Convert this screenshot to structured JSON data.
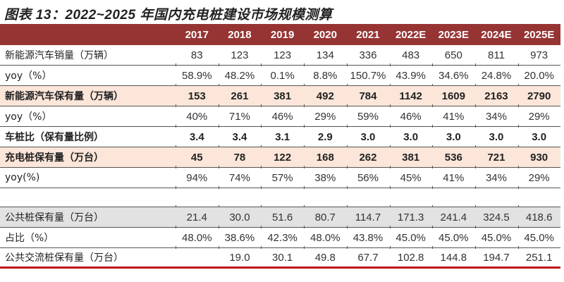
{
  "title": "图表 13：2022~2025 年国内充电桩建设市场规模测算",
  "colors": {
    "header_bg": "#963434",
    "highlight_peach": "#fbe6d9",
    "highlight_gray": "#e2e2e2",
    "bottom_rule": "#c0141b"
  },
  "table": {
    "columns": [
      "2017",
      "2018",
      "2019",
      "2020",
      "2021",
      "2022E",
      "2023E",
      "2024E",
      "2025E"
    ],
    "rows": [
      {
        "label": "新能源汽车销量（万辆）",
        "values": [
          "83",
          "123",
          "123",
          "134",
          "336",
          "483",
          "650",
          "811",
          "973"
        ]
      },
      {
        "label": "yoy（%）",
        "values": [
          "58.9%",
          "48.2%",
          "0.1%",
          "8.8%",
          "150.7%",
          "43.9%",
          "34.6%",
          "24.8%",
          "20.0%"
        ]
      },
      {
        "label": "新能源汽车保有量（万辆）",
        "values": [
          "153",
          "261",
          "381",
          "492",
          "784",
          "1142",
          "1609",
          "2163",
          "2790"
        ]
      },
      {
        "label": "yoy（%）",
        "values": [
          "40%",
          "71%",
          "46%",
          "29%",
          "59%",
          "46%",
          "41%",
          "34%",
          "29%"
        ]
      },
      {
        "label": "车桩比（保有量比例）",
        "values": [
          "3.4",
          "3.4",
          "3.1",
          "2.9",
          "3.0",
          "3.0",
          "3.0",
          "3.0",
          "3.0"
        ]
      },
      {
        "label": "充电桩保有量（万台）",
        "values": [
          "45",
          "78",
          "122",
          "168",
          "262",
          "381",
          "536",
          "721",
          "930"
        ]
      },
      {
        "label": "yoy(%)",
        "values": [
          "94%",
          "74%",
          "57%",
          "38%",
          "56%",
          "45%",
          "41%",
          "34%",
          "29%"
        ]
      },
      {
        "label": "公共桩保有量（万台）",
        "values": [
          "21.4",
          "30.0",
          "51.6",
          "80.7",
          "114.7",
          "171.3",
          "241.4",
          "324.5",
          "418.6"
        ]
      },
      {
        "label": "占比（%）",
        "values": [
          "48.0%",
          "38.6%",
          "42.3%",
          "48.0%",
          "43.8%",
          "45.0%",
          "45.0%",
          "45.0%",
          "45.0%"
        ]
      },
      {
        "label": "公共交流桩保有量（万台）",
        "values": [
          "",
          "19.0",
          "30.1",
          "49.8",
          "67.7",
          "102.8",
          "144.8",
          "194.7",
          "251.1"
        ]
      }
    ]
  }
}
